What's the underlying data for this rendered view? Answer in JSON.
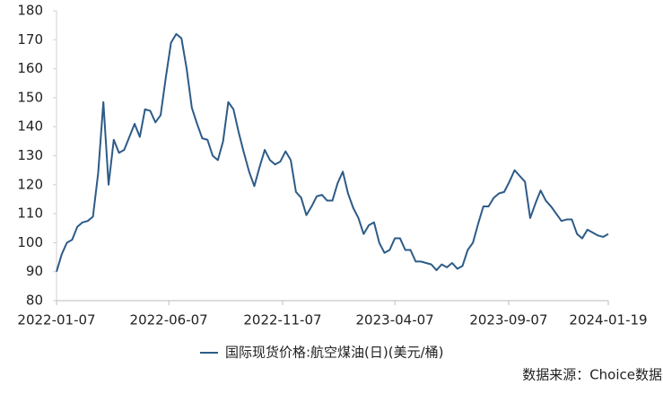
{
  "chart_data": {
    "type": "line",
    "x": [
      "2022-01-07",
      "2022-01-14",
      "2022-01-21",
      "2022-01-28",
      "2022-02-04",
      "2022-02-11",
      "2022-02-18",
      "2022-02-25",
      "2022-03-04",
      "2022-03-11",
      "2022-03-18",
      "2022-03-25",
      "2022-04-01",
      "2022-04-08",
      "2022-04-15",
      "2022-04-22",
      "2022-04-29",
      "2022-05-06",
      "2022-05-13",
      "2022-05-20",
      "2022-05-27",
      "2022-06-03",
      "2022-06-10",
      "2022-06-17",
      "2022-06-24",
      "2022-07-01",
      "2022-07-08",
      "2022-07-15",
      "2022-07-22",
      "2022-07-29",
      "2022-08-05",
      "2022-08-12",
      "2022-08-19",
      "2022-08-26",
      "2022-09-02",
      "2022-09-09",
      "2022-09-16",
      "2022-09-23",
      "2022-09-30",
      "2022-10-07",
      "2022-10-14",
      "2022-10-21",
      "2022-10-28",
      "2022-11-04",
      "2022-11-11",
      "2022-11-18",
      "2022-11-25",
      "2022-12-02",
      "2022-12-09",
      "2022-12-16",
      "2022-12-23",
      "2022-12-30",
      "2023-01-06",
      "2023-01-13",
      "2023-01-20",
      "2023-01-27",
      "2023-02-03",
      "2023-02-10",
      "2023-02-17",
      "2023-02-24",
      "2023-03-03",
      "2023-03-10",
      "2023-03-17",
      "2023-03-24",
      "2023-03-31",
      "2023-04-07",
      "2023-04-14",
      "2023-04-21",
      "2023-04-28",
      "2023-05-05",
      "2023-05-12",
      "2023-05-19",
      "2023-05-26",
      "2023-06-02",
      "2023-06-09",
      "2023-06-16",
      "2023-06-23",
      "2023-06-30",
      "2023-07-07",
      "2023-07-14",
      "2023-07-21",
      "2023-07-28",
      "2023-08-04",
      "2023-08-11",
      "2023-08-18",
      "2023-08-25",
      "2023-09-01",
      "2023-09-08",
      "2023-09-15",
      "2023-09-22",
      "2023-09-29",
      "2023-10-06",
      "2023-10-13",
      "2023-10-20",
      "2023-10-27",
      "2023-11-03",
      "2023-11-10",
      "2023-11-17",
      "2023-11-24",
      "2023-12-01",
      "2023-12-08",
      "2023-12-15",
      "2023-12-22",
      "2023-12-29",
      "2024-01-05",
      "2024-01-12",
      "2024-01-19"
    ],
    "series": [
      {
        "name": "国际现货价格:航空煤油(日)(美元/桶)",
        "color": "#2d5b88",
        "values": [
          90,
          96,
          100,
          101,
          105.5,
          107,
          107.5,
          109,
          124,
          148.5,
          120,
          135.5,
          131,
          132,
          136.5,
          141,
          136.5,
          146,
          145.5,
          141.5,
          144,
          157,
          169,
          172,
          170.5,
          160,
          146.5,
          141,
          136,
          135.5,
          130,
          128.5,
          135,
          148.5,
          146,
          138,
          131,
          124.5,
          119.5,
          126,
          132,
          128.5,
          127,
          128,
          131.5,
          128.5,
          117.5,
          115.5,
          109.5,
          112.5,
          116,
          116.5,
          114.5,
          114.5,
          120.5,
          124.5,
          117,
          112,
          108.5,
          103,
          106,
          107,
          100,
          96.5,
          97.5,
          101.5,
          101.5,
          97.5,
          97.5,
          93.5,
          93.5,
          93,
          92.5,
          90.5,
          92.5,
          91.5,
          93,
          91,
          92,
          97.5,
          100,
          106.5,
          112.5,
          112.5,
          115.5,
          117,
          117.5,
          121,
          125,
          123,
          121,
          108.5,
          113.5,
          118,
          114.5,
          112.5,
          110,
          107.5,
          108,
          108,
          103,
          101.5,
          104.5,
          103.5,
          102.5,
          102,
          103
        ]
      }
    ],
    "xlim": [
      "2022-01-07",
      "2024-01-19"
    ],
    "xticks": [
      "2022-01-07",
      "2022-06-07",
      "2022-11-07",
      "2023-04-07",
      "2023-09-07",
      "2024-01-19"
    ],
    "ylim": [
      80,
      180
    ],
    "yticks": [
      80,
      90,
      100,
      110,
      120,
      130,
      140,
      150,
      160,
      170,
      180
    ],
    "source": "数据来源：Choice数据"
  }
}
